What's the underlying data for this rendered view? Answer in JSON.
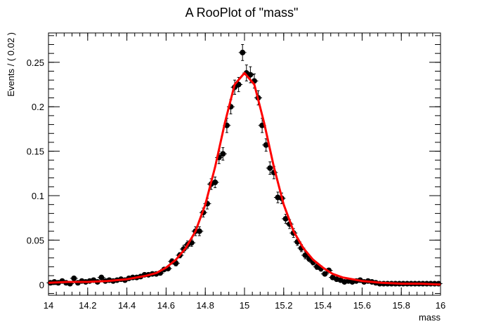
{
  "chart_data": {
    "type": "scatter",
    "title": "A RooPlot of \"mass\"",
    "xlabel": "mass",
    "ylabel": "Events / ( 0.02 )",
    "xlim": [
      14,
      16
    ],
    "ylim": [
      -0.012,
      0.283
    ],
    "xticks": [
      "14",
      "14.2",
      "14.4",
      "14.6",
      "14.8",
      "15",
      "15.2",
      "15.4",
      "15.6",
      "15.8",
      "16"
    ],
    "yticks": [
      "0",
      "0.05",
      "0.1",
      "0.15",
      "0.2",
      "0.25"
    ],
    "grid": false,
    "colors": {
      "data": "#000000",
      "fit": "#ff0000"
    },
    "series": [
      {
        "kind": "data",
        "x": [
          14.01,
          14.03,
          14.05,
          14.07,
          14.09,
          14.11,
          14.13,
          14.15,
          14.17,
          14.19,
          14.21,
          14.23,
          14.25,
          14.27,
          14.29,
          14.31,
          14.33,
          14.35,
          14.37,
          14.39,
          14.41,
          14.43,
          14.45,
          14.47,
          14.49,
          14.51,
          14.53,
          14.55,
          14.57,
          14.59,
          14.61,
          14.63,
          14.65,
          14.67,
          14.69,
          14.71,
          14.73,
          14.75,
          14.77,
          14.79,
          14.81,
          14.83,
          14.85,
          14.87,
          14.89,
          14.91,
          14.93,
          14.95,
          14.97,
          14.99,
          15.01,
          15.03,
          15.05,
          15.07,
          15.09,
          15.11,
          15.13,
          15.15,
          15.17,
          15.19,
          15.21,
          15.23,
          15.25,
          15.27,
          15.29,
          15.31,
          15.33,
          15.35,
          15.37,
          15.39,
          15.41,
          15.43,
          15.45,
          15.47,
          15.49,
          15.51,
          15.53,
          15.55,
          15.57,
          15.59,
          15.61,
          15.63,
          15.65,
          15.67,
          15.69,
          15.71,
          15.73,
          15.75,
          15.77,
          15.79,
          15.81,
          15.83,
          15.85,
          15.87,
          15.89,
          15.91,
          15.93,
          15.95,
          15.97,
          15.99
        ],
        "y": [
          0.002,
          0.003,
          0.002,
          0.004,
          0.002,
          0.001,
          0.007,
          0.002,
          0.004,
          0.003,
          0.004,
          0.005,
          0.003,
          0.008,
          0.004,
          0.005,
          0.004,
          0.005,
          0.006,
          0.005,
          0.007,
          0.008,
          0.008,
          0.009,
          0.011,
          0.011,
          0.012,
          0.012,
          0.013,
          0.017,
          0.018,
          0.026,
          0.024,
          0.033,
          0.04,
          0.045,
          0.047,
          0.06,
          0.06,
          0.081,
          0.091,
          0.113,
          0.115,
          0.143,
          0.147,
          0.179,
          0.2,
          0.222,
          0.225,
          0.261,
          0.238,
          0.236,
          0.229,
          0.21,
          0.179,
          0.157,
          0.131,
          0.126,
          0.098,
          0.097,
          0.074,
          0.068,
          0.058,
          0.048,
          0.041,
          0.033,
          0.029,
          0.025,
          0.02,
          0.018,
          0.012,
          0.016,
          0.008,
          0.006,
          0.005,
          0.003,
          0.004,
          0.003,
          0.004,
          0.005,
          0.003,
          0.004,
          0.003,
          0.002,
          0.001,
          0.001,
          0.001,
          0.001,
          0.001,
          0.001,
          0.001,
          0.001,
          0.001,
          0.001,
          0.001,
          0.001,
          0.001,
          0.001,
          0.001,
          0.001
        ],
        "err": [
          0.002,
          0.002,
          0.002,
          0.002,
          0.002,
          0.002,
          0.002,
          0.002,
          0.002,
          0.002,
          0.002,
          0.002,
          0.002,
          0.002,
          0.002,
          0.002,
          0.002,
          0.002,
          0.002,
          0.002,
          0.002,
          0.002,
          0.002,
          0.002,
          0.002,
          0.002,
          0.002,
          0.002,
          0.002,
          0.002,
          0.002,
          0.003,
          0.003,
          0.003,
          0.004,
          0.004,
          0.004,
          0.005,
          0.005,
          0.005,
          0.006,
          0.006,
          0.006,
          0.007,
          0.007,
          0.008,
          0.008,
          0.008,
          0.008,
          0.009,
          0.009,
          0.009,
          0.008,
          0.008,
          0.008,
          0.007,
          0.007,
          0.007,
          0.006,
          0.006,
          0.005,
          0.005,
          0.005,
          0.004,
          0.004,
          0.004,
          0.003,
          0.003,
          0.003,
          0.003,
          0.002,
          0.002,
          0.002,
          0.002,
          0.002,
          0.002,
          0.002,
          0.002,
          0.002,
          0.002,
          0.002,
          0.002,
          0.002,
          0.002,
          0.002,
          0.002,
          0.002,
          0.002,
          0.002,
          0.002,
          0.002,
          0.002,
          0.002,
          0.002,
          0.002,
          0.002,
          0.002,
          0.002,
          0.002,
          0.002
        ]
      },
      {
        "kind": "fit",
        "x": [
          14.0,
          14.1,
          14.2,
          14.3,
          14.4,
          14.5,
          14.55,
          14.6,
          14.65,
          14.7,
          14.75,
          14.8,
          14.85,
          14.9,
          14.95,
          15.0,
          15.05,
          15.1,
          15.15,
          15.2,
          15.25,
          15.3,
          15.35,
          15.4,
          15.45,
          15.5,
          15.6,
          15.7,
          15.8,
          15.9,
          16.0
        ],
        "y": [
          0.002,
          0.003,
          0.003,
          0.004,
          0.006,
          0.01,
          0.013,
          0.019,
          0.028,
          0.041,
          0.06,
          0.09,
          0.132,
          0.182,
          0.225,
          0.238,
          0.225,
          0.182,
          0.132,
          0.09,
          0.06,
          0.041,
          0.028,
          0.019,
          0.012,
          0.008,
          0.004,
          0.002,
          0.001,
          0.001,
          0.0
        ]
      }
    ]
  }
}
